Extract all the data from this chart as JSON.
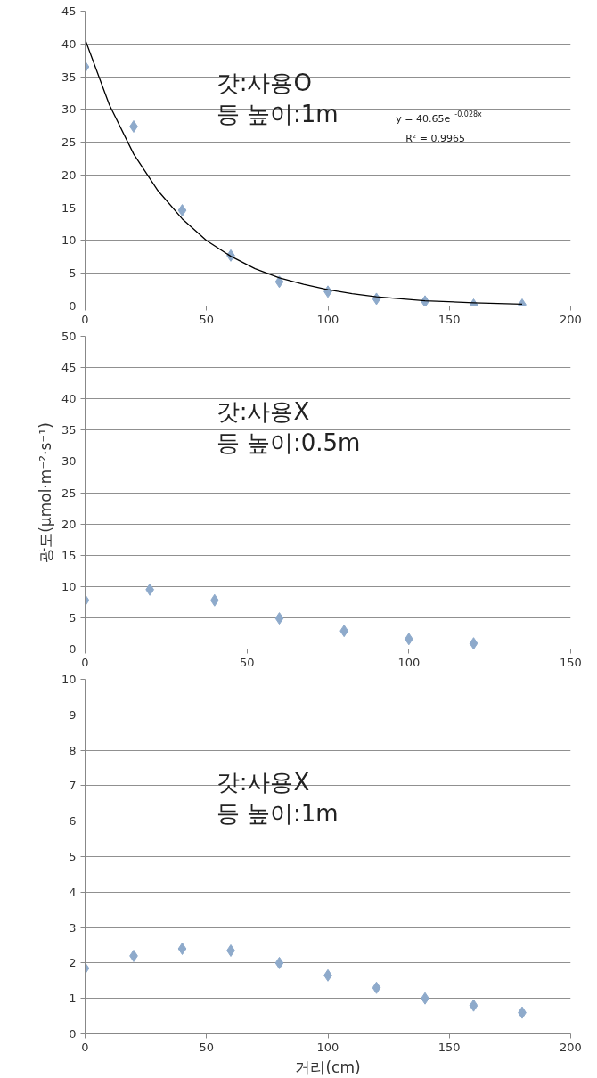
{
  "chart_data": [
    {
      "type": "scatter",
      "marker": "diamond",
      "grid": "y",
      "xlim": [
        0,
        200
      ],
      "xticks": [
        0,
        50,
        100,
        150,
        200
      ],
      "ylim": [
        0,
        45
      ],
      "yticks": [
        0,
        5,
        10,
        15,
        20,
        25,
        30,
        35,
        40,
        45
      ],
      "annotations": [
        "갓:사용O\n등 높이:1m",
        "y = 40.65e$^{-0.028x}$",
        "R² = 0.9965"
      ],
      "series": [
        {
          "color": "#8eaacb",
          "x": [
            0,
            20,
            40,
            60,
            80,
            100,
            120,
            140,
            160,
            180
          ],
          "values": [
            36.5,
            27.4,
            14.6,
            7.7,
            3.7,
            2.2,
            1.1,
            0.7,
            0.2,
            0.2
          ]
        },
        {
          "type": "line",
          "marker": "none",
          "color": "#000000",
          "x": [
            0,
            10,
            20,
            30,
            40,
            50,
            60,
            70,
            80,
            90,
            100,
            110,
            120,
            140,
            160,
            180
          ],
          "values": [
            40.7,
            30.7,
            23.2,
            17.6,
            13.3,
            10,
            7.6,
            5.7,
            4.3,
            3.3,
            2.5,
            1.9,
            1.4,
            0.8,
            0.5,
            0.3
          ]
        }
      ]
    },
    {
      "type": "scatter",
      "marker": "diamond",
      "grid": "y",
      "ylabel": "광도(μmol·m⁻²·s⁻¹)",
      "xlim": [
        0,
        150
      ],
      "xticks": [
        0,
        50,
        100,
        150
      ],
      "ylim": [
        0,
        50
      ],
      "yticks": [
        0,
        5,
        10,
        15,
        20,
        25,
        30,
        35,
        40,
        45,
        50
      ],
      "annotations": [
        "갓:사용X\n등 높이:0.5m"
      ],
      "series": [
        {
          "color": "#8eaacb",
          "x": [
            0,
            20,
            40,
            60,
            80,
            100,
            120
          ],
          "values": [
            7.8,
            9.5,
            7.8,
            4.9,
            2.9,
            1.6,
            0.9
          ]
        }
      ]
    },
    {
      "type": "scatter",
      "marker": "diamond",
      "grid": "y",
      "xlabel": "거리(cm)",
      "xlim": [
        0,
        200
      ],
      "xticks": [
        0,
        50,
        100,
        150,
        200
      ],
      "ylim": [
        0,
        10
      ],
      "yticks": [
        0,
        1,
        2,
        3,
        4,
        5,
        6,
        7,
        8,
        9,
        10
      ],
      "annotations": [
        "갓:사용X\n등 높이:1m"
      ],
      "series": [
        {
          "color": "#8eaacb",
          "x": [
            0,
            20,
            40,
            60,
            80,
            100,
            120,
            140,
            160,
            180
          ],
          "values": [
            1.85,
            2.2,
            2.4,
            2.35,
            2.0,
            1.65,
            1.3,
            1.0,
            0.8,
            0.6
          ]
        }
      ]
    }
  ]
}
